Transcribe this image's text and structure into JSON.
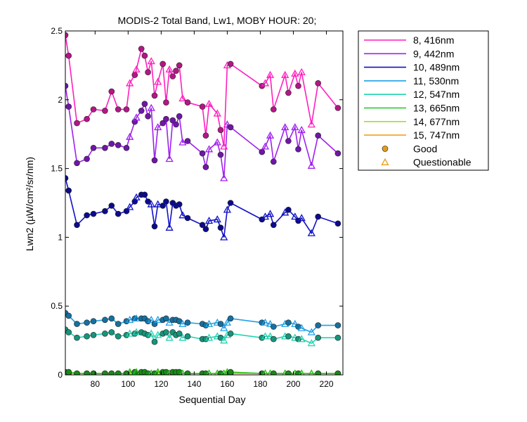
{
  "chart_data": {
    "type": "line",
    "title": "MODIS-2 Total Band, Lw1, MOBY HOUR: 20;",
    "xlabel": "Sequential Day",
    "ylabel": "Lwn2 (µW/cm²/sr/nm)",
    "xlim": [
      62,
      230
    ],
    "ylim": [
      0,
      2.5
    ],
    "xticks": [
      80,
      100,
      120,
      140,
      160,
      180,
      200,
      220
    ],
    "yticks": [
      0,
      0.5,
      1,
      1.5,
      2,
      2.5
    ],
    "grid": false,
    "legend_position": "outside-right",
    "x": [
      62,
      64,
      69,
      75,
      79,
      86,
      90,
      94,
      99,
      101,
      104,
      105,
      108,
      110,
      112,
      114,
      116,
      118,
      121,
      123,
      125,
      127,
      129,
      131,
      133,
      136,
      145,
      147,
      149,
      154,
      156,
      158,
      160,
      162,
      181,
      183,
      186,
      188,
      195,
      197,
      201,
      203,
      205,
      211,
      215,
      227
    ],
    "series": [
      {
        "name": "8, 416nm",
        "color": "#ff1fbf",
        "values": [
          2.47,
          2.32,
          1.83,
          1.86,
          1.93,
          1.92,
          2.06,
          1.93,
          1.93,
          2.12,
          2.18,
          2.22,
          2.37,
          2.32,
          2.2,
          2.28,
          2.03,
          2.13,
          2.26,
          1.98,
          2.22,
          2.17,
          2.21,
          2.25,
          2.01,
          1.98,
          1.95,
          1.74,
          1.97,
          1.9,
          1.78,
          1.66,
          2.25,
          2.26,
          2.1,
          2.12,
          2.18,
          1.93,
          2.18,
          2.05,
          2.19,
          2.1,
          2.2,
          1.82,
          2.12,
          1.94
        ]
      },
      {
        "name": "9, 442nm",
        "color": "#a020f0",
        "values": [
          2.1,
          1.95,
          1.54,
          1.57,
          1.65,
          1.65,
          1.68,
          1.67,
          1.65,
          1.73,
          1.84,
          1.87,
          1.92,
          1.97,
          1.88,
          1.94,
          1.56,
          1.8,
          1.83,
          1.86,
          1.57,
          1.85,
          1.82,
          1.88,
          1.69,
          1.7,
          1.61,
          1.51,
          1.64,
          1.69,
          1.6,
          1.43,
          1.82,
          1.8,
          1.62,
          1.66,
          1.74,
          1.55,
          1.8,
          1.7,
          1.8,
          1.64,
          1.78,
          1.52,
          1.74,
          1.61
        ]
      },
      {
        "name": "10, 489nm",
        "color": "#1010c8",
        "values": [
          1.43,
          1.34,
          1.09,
          1.16,
          1.17,
          1.19,
          1.23,
          1.17,
          1.19,
          1.22,
          1.26,
          1.29,
          1.31,
          1.31,
          1.26,
          1.24,
          1.08,
          1.24,
          1.23,
          1.26,
          1.07,
          1.25,
          1.23,
          1.24,
          1.16,
          1.14,
          1.09,
          1.06,
          1.12,
          1.13,
          1.07,
          1.0,
          1.2,
          1.25,
          1.13,
          1.15,
          1.17,
          1.09,
          1.18,
          1.2,
          1.15,
          1.12,
          1.14,
          1.03,
          1.15,
          1.1
        ]
      },
      {
        "name": "11, 530nm",
        "color": "#1ea0e6",
        "values": [
          0.45,
          0.43,
          0.37,
          0.38,
          0.39,
          0.4,
          0.41,
          0.37,
          0.39,
          0.4,
          0.41,
          0.41,
          0.41,
          0.41,
          0.39,
          0.4,
          0.37,
          0.4,
          0.4,
          0.41,
          0.38,
          0.4,
          0.4,
          0.39,
          0.37,
          0.38,
          0.37,
          0.36,
          0.37,
          0.38,
          0.37,
          0.34,
          0.38,
          0.41,
          0.38,
          0.38,
          0.37,
          0.35,
          0.37,
          0.38,
          0.37,
          0.35,
          0.34,
          0.31,
          0.36,
          0.36
        ]
      },
      {
        "name": "12, 547nm",
        "color": "#20d4b0",
        "values": [
          0.33,
          0.31,
          0.27,
          0.28,
          0.29,
          0.3,
          0.31,
          0.28,
          0.29,
          0.3,
          0.3,
          0.31,
          0.31,
          0.3,
          0.29,
          0.3,
          0.24,
          0.29,
          0.3,
          0.31,
          0.27,
          0.31,
          0.29,
          0.3,
          0.27,
          0.28,
          0.26,
          0.26,
          0.27,
          0.28,
          0.27,
          0.25,
          0.29,
          0.3,
          0.27,
          0.28,
          0.28,
          0.26,
          0.28,
          0.28,
          0.27,
          0.26,
          0.26,
          0.23,
          0.27,
          0.27
        ]
      },
      {
        "name": "13, 665nm",
        "color": "#20c820",
        "values": [
          0.02,
          0.02,
          0.01,
          0.01,
          0.01,
          0.01,
          0.01,
          0.01,
          0.01,
          0.02,
          0.02,
          0.02,
          0.02,
          0.02,
          0.01,
          0.01,
          0.01,
          0.02,
          0.02,
          0.02,
          0.01,
          0.02,
          0.02,
          0.02,
          0.01,
          0.01,
          0.01,
          0.01,
          0.01,
          0.01,
          0.01,
          0.01,
          0.02,
          0.02,
          0.01,
          0.01,
          0.01,
          0.01,
          0.01,
          0.01,
          0.01,
          0.01,
          0.01,
          0.01,
          0.01,
          0.01
        ]
      },
      {
        "name": "14, 677nm",
        "color": "#a0e020",
        "values": [
          0.02,
          0.02,
          0.01,
          0.01,
          0.01,
          0.01,
          0.01,
          0.01,
          0.01,
          0.02,
          0.02,
          0.02,
          0.02,
          0.02,
          0.01,
          0.01,
          0.01,
          0.02,
          0.02,
          0.02,
          0.01,
          0.02,
          0.02,
          0.02,
          0.01,
          0.01,
          0.01,
          0.01,
          0.01,
          0.01,
          0.01,
          0.01,
          0.02,
          0.02,
          0.01,
          0.01,
          0.01,
          0.01,
          0.01,
          0.01,
          0.01,
          0.01,
          0.01,
          0.01,
          0.01,
          0.01
        ]
      },
      {
        "name": "15, 747nm",
        "color": "#f0a020",
        "values": [
          0.01,
          0.01,
          0.01,
          0.01,
          0.01,
          0.01,
          0.01,
          0.01,
          0.01,
          0.01,
          0.01,
          0.01,
          0.01,
          0.01,
          0.01,
          0.01,
          0.01,
          0.01,
          0.01,
          0.01,
          0.01,
          0.01,
          0.01,
          0.01,
          0.01,
          0.01,
          0.01,
          0.01,
          0.01,
          0.01,
          0.01,
          0.01,
          0.01,
          0.01,
          0.01,
          0.01,
          0.01,
          0.01,
          0.01,
          0.01,
          0.01,
          0.01,
          0.01,
          0.01,
          0.01,
          0.01
        ]
      }
    ],
    "quality": [
      "good",
      "good",
      "good",
      "good",
      "good",
      "good",
      "good",
      "good",
      "good",
      "questionable",
      "good",
      "questionable",
      "good",
      "good",
      "good",
      "questionable",
      "good",
      "questionable",
      "good",
      "good",
      "questionable",
      "good",
      "good",
      "good",
      "questionable",
      "good",
      "good",
      "good",
      "questionable",
      "questionable",
      "good",
      "questionable",
      "questionable",
      "good",
      "good",
      "questionable",
      "questionable",
      "good",
      "questionable",
      "good",
      "questionable",
      "good",
      "questionable",
      "questionable",
      "good",
      "good"
    ],
    "marker_legend": {
      "good": {
        "label": "Good",
        "color": "#e89a1a"
      },
      "questionable": {
        "label": "Questionable",
        "color": "#e89a1a"
      }
    }
  }
}
